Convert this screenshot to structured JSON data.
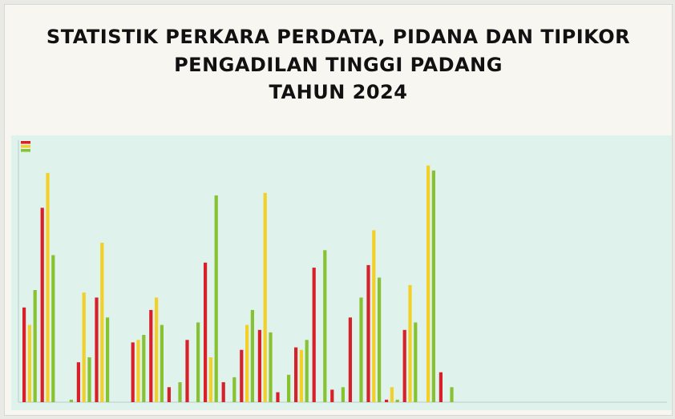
{
  "title": {
    "line1": "STATISTIK PERKARA  PERDATA, PIDANA DAN TIPIKOR",
    "line2": "PENGADILAN TINGGI PADANG",
    "line3": "TAHUN 2024"
  },
  "chart_data": {
    "type": "bar",
    "title": "STATISTIK PERKARA PERDATA, PIDANA DAN TIPIKOR PENGADILAN TINGGI PADANG TAHUN 2024",
    "xlabel": "",
    "ylabel": "",
    "ylim": [
      0,
      100
    ],
    "grid": false,
    "legend": "top-left",
    "colors": [
      "#d8202a",
      "#f3d028",
      "#86c232"
    ],
    "series": [
      {
        "name": "",
        "values": [
          38,
          78,
          0,
          16,
          42,
          0,
          24,
          37,
          6,
          25,
          56,
          8,
          21,
          29,
          4,
          22,
          54,
          5,
          34,
          55,
          1,
          29,
          0,
          12
        ]
      },
      {
        "name": "",
        "values": [
          31,
          92,
          0,
          44,
          64,
          0,
          25,
          42,
          0,
          0,
          18,
          0,
          31,
          84,
          0,
          21,
          0,
          0,
          0,
          69,
          6,
          47,
          95,
          0
        ]
      },
      {
        "name": "",
        "values": [
          45,
          59,
          1,
          18,
          34,
          0,
          27,
          31,
          8,
          32,
          83,
          10,
          37,
          28,
          11,
          25,
          61,
          6,
          42,
          50,
          1,
          32,
          93,
          6
        ]
      }
    ]
  }
}
